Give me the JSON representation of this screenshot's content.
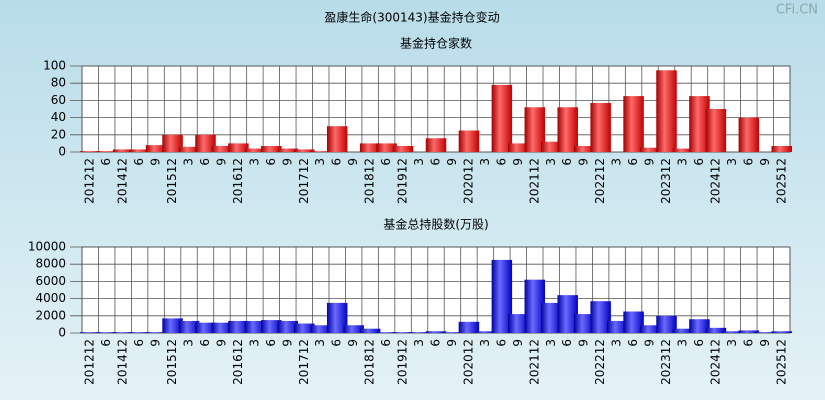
{
  "title": "盈康生命(300143)基金持仓变动",
  "watermark": "CFi.CN",
  "chart_data": [
    {
      "type": "bar",
      "title": "基金持仓家数",
      "color": "#e02020",
      "categories": [
        "201212",
        "6",
        "201412",
        "6",
        "9",
        "201512",
        "3",
        "6",
        "9",
        "201612",
        "3",
        "6",
        "9",
        "201712",
        "3",
        "6",
        "9",
        "201812",
        "6",
        "201912",
        "3",
        "6",
        "9",
        "202012",
        "3",
        "6",
        "9",
        "202112",
        "3",
        "6",
        "9",
        "202212",
        "3",
        "6",
        "9",
        "202312",
        "3",
        "6",
        "202412",
        "3",
        "6",
        "9",
        "202512"
      ],
      "values": [
        1,
        1,
        3,
        3,
        8,
        20,
        6,
        20,
        7,
        10,
        4,
        7,
        4,
        3,
        1,
        30,
        0,
        10,
        10,
        7,
        0,
        16,
        0,
        25,
        0,
        78,
        10,
        52,
        12,
        52,
        7,
        57,
        0,
        65,
        5,
        95,
        4,
        65,
        50,
        0,
        40,
        0,
        7
      ],
      "ylim": [
        0,
        100
      ],
      "yticks": [
        0,
        20,
        40,
        60,
        80,
        100
      ],
      "grid": true
    },
    {
      "type": "bar",
      "title": "基金总持股数(万股)",
      "color": "#2020e0",
      "categories": [
        "201212",
        "6",
        "201412",
        "6",
        "9",
        "201512",
        "3",
        "6",
        "9",
        "201612",
        "3",
        "6",
        "9",
        "201712",
        "3",
        "6",
        "9",
        "201812",
        "6",
        "201912",
        "3",
        "6",
        "9",
        "202012",
        "3",
        "6",
        "9",
        "202112",
        "3",
        "6",
        "9",
        "202212",
        "3",
        "6",
        "9",
        "202312",
        "3",
        "6",
        "202412",
        "3",
        "6",
        "9",
        "202512"
      ],
      "values": [
        100,
        100,
        100,
        100,
        100,
        1700,
        1400,
        1200,
        1200,
        1400,
        1400,
        1500,
        1400,
        1100,
        900,
        3500,
        900,
        500,
        100,
        100,
        100,
        200,
        100,
        1300,
        200,
        8500,
        2200,
        6200,
        3500,
        4400,
        2200,
        3700,
        1400,
        2500,
        900,
        2000,
        500,
        1600,
        600,
        200,
        300,
        100,
        200
      ],
      "ylim": [
        0,
        10000
      ],
      "yticks": [
        0,
        2000,
        4000,
        6000,
        8000,
        10000
      ],
      "grid": true
    }
  ]
}
